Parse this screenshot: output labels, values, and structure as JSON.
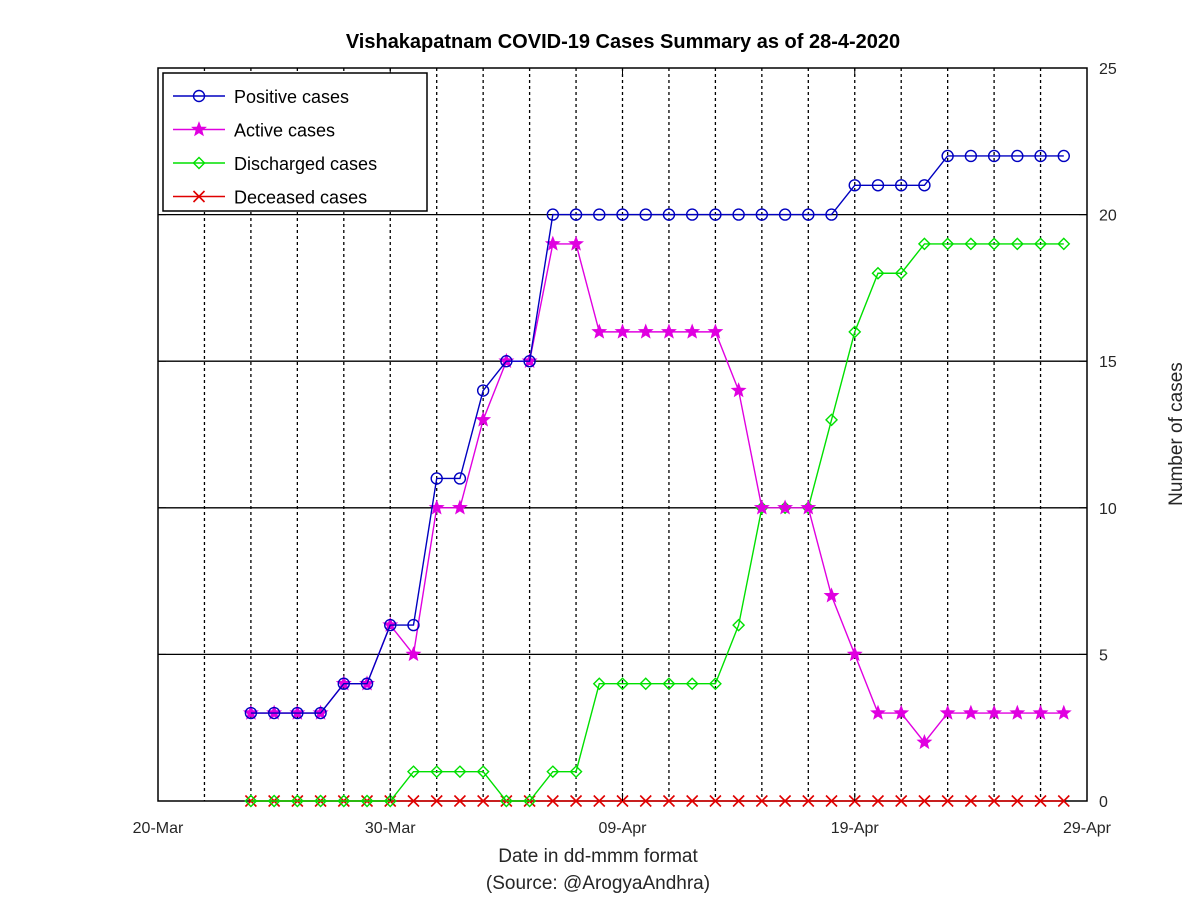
{
  "chart_data": {
    "type": "line",
    "title": "Vishakapatnam COVID-19 Cases Summary as of 28-4-2020",
    "xlabel": "Date in dd-mmm format",
    "xlabel_source": "(Source: @ArogyaAndhra)",
    "ylabel": "Number of cases",
    "xlim": [
      "2020-03-20",
      "2020-04-29"
    ],
    "ylim": [
      0,
      25
    ],
    "x_ticks": [
      "20-Mar",
      "30-Mar",
      "09-Apr",
      "19-Apr",
      "29-Apr"
    ],
    "y_ticks": [
      "0",
      "5",
      "10",
      "15",
      "20",
      "25"
    ],
    "y_axis_position": "right",
    "grid": {
      "x": "dotted",
      "y": "solid"
    },
    "legend_position": "top-left",
    "x": [
      "2020-03-24",
      "2020-03-25",
      "2020-03-26",
      "2020-03-27",
      "2020-03-28",
      "2020-03-29",
      "2020-03-30",
      "2020-03-31",
      "2020-04-01",
      "2020-04-02",
      "2020-04-03",
      "2020-04-04",
      "2020-04-05",
      "2020-04-06",
      "2020-04-07",
      "2020-04-08",
      "2020-04-09",
      "2020-04-10",
      "2020-04-11",
      "2020-04-12",
      "2020-04-13",
      "2020-04-14",
      "2020-04-15",
      "2020-04-16",
      "2020-04-17",
      "2020-04-18",
      "2020-04-19",
      "2020-04-20",
      "2020-04-21",
      "2020-04-22",
      "2020-04-23",
      "2020-04-24",
      "2020-04-25",
      "2020-04-26",
      "2020-04-27",
      "2020-04-28"
    ],
    "series": [
      {
        "name": "Positive cases",
        "color": "#0000c0",
        "marker": "circle",
        "values": [
          3,
          3,
          3,
          3,
          4,
          4,
          6,
          6,
          11,
          11,
          14,
          15,
          15,
          20,
          20,
          20,
          20,
          20,
          20,
          20,
          20,
          20,
          20,
          20,
          20,
          20,
          21,
          21,
          21,
          21,
          22,
          22,
          22,
          22,
          22,
          22
        ]
      },
      {
        "name": "Active cases",
        "color": "#e000e0",
        "marker": "star",
        "values": [
          3,
          3,
          3,
          3,
          4,
          4,
          6,
          5,
          10,
          10,
          13,
          15,
          15,
          19,
          19,
          16,
          16,
          16,
          16,
          16,
          16,
          14,
          10,
          10,
          10,
          7,
          5,
          3,
          3,
          2,
          3,
          3,
          3,
          3,
          3,
          3
        ]
      },
      {
        "name": "Discharged cases",
        "color": "#00e000",
        "marker": "diamond",
        "values": [
          0,
          0,
          0,
          0,
          0,
          0,
          0,
          1,
          1,
          1,
          1,
          0,
          0,
          1,
          1,
          4,
          4,
          4,
          4,
          4,
          4,
          6,
          10,
          10,
          10,
          13,
          16,
          18,
          18,
          19,
          19,
          19,
          19,
          19,
          19,
          19
        ]
      },
      {
        "name": "Deceased cases",
        "color": "#e00000",
        "marker": "x",
        "values": [
          0,
          0,
          0,
          0,
          0,
          0,
          0,
          0,
          0,
          0,
          0,
          0,
          0,
          0,
          0,
          0,
          0,
          0,
          0,
          0,
          0,
          0,
          0,
          0,
          0,
          0,
          0,
          0,
          0,
          0,
          0,
          0,
          0,
          0,
          0,
          0
        ]
      }
    ]
  }
}
